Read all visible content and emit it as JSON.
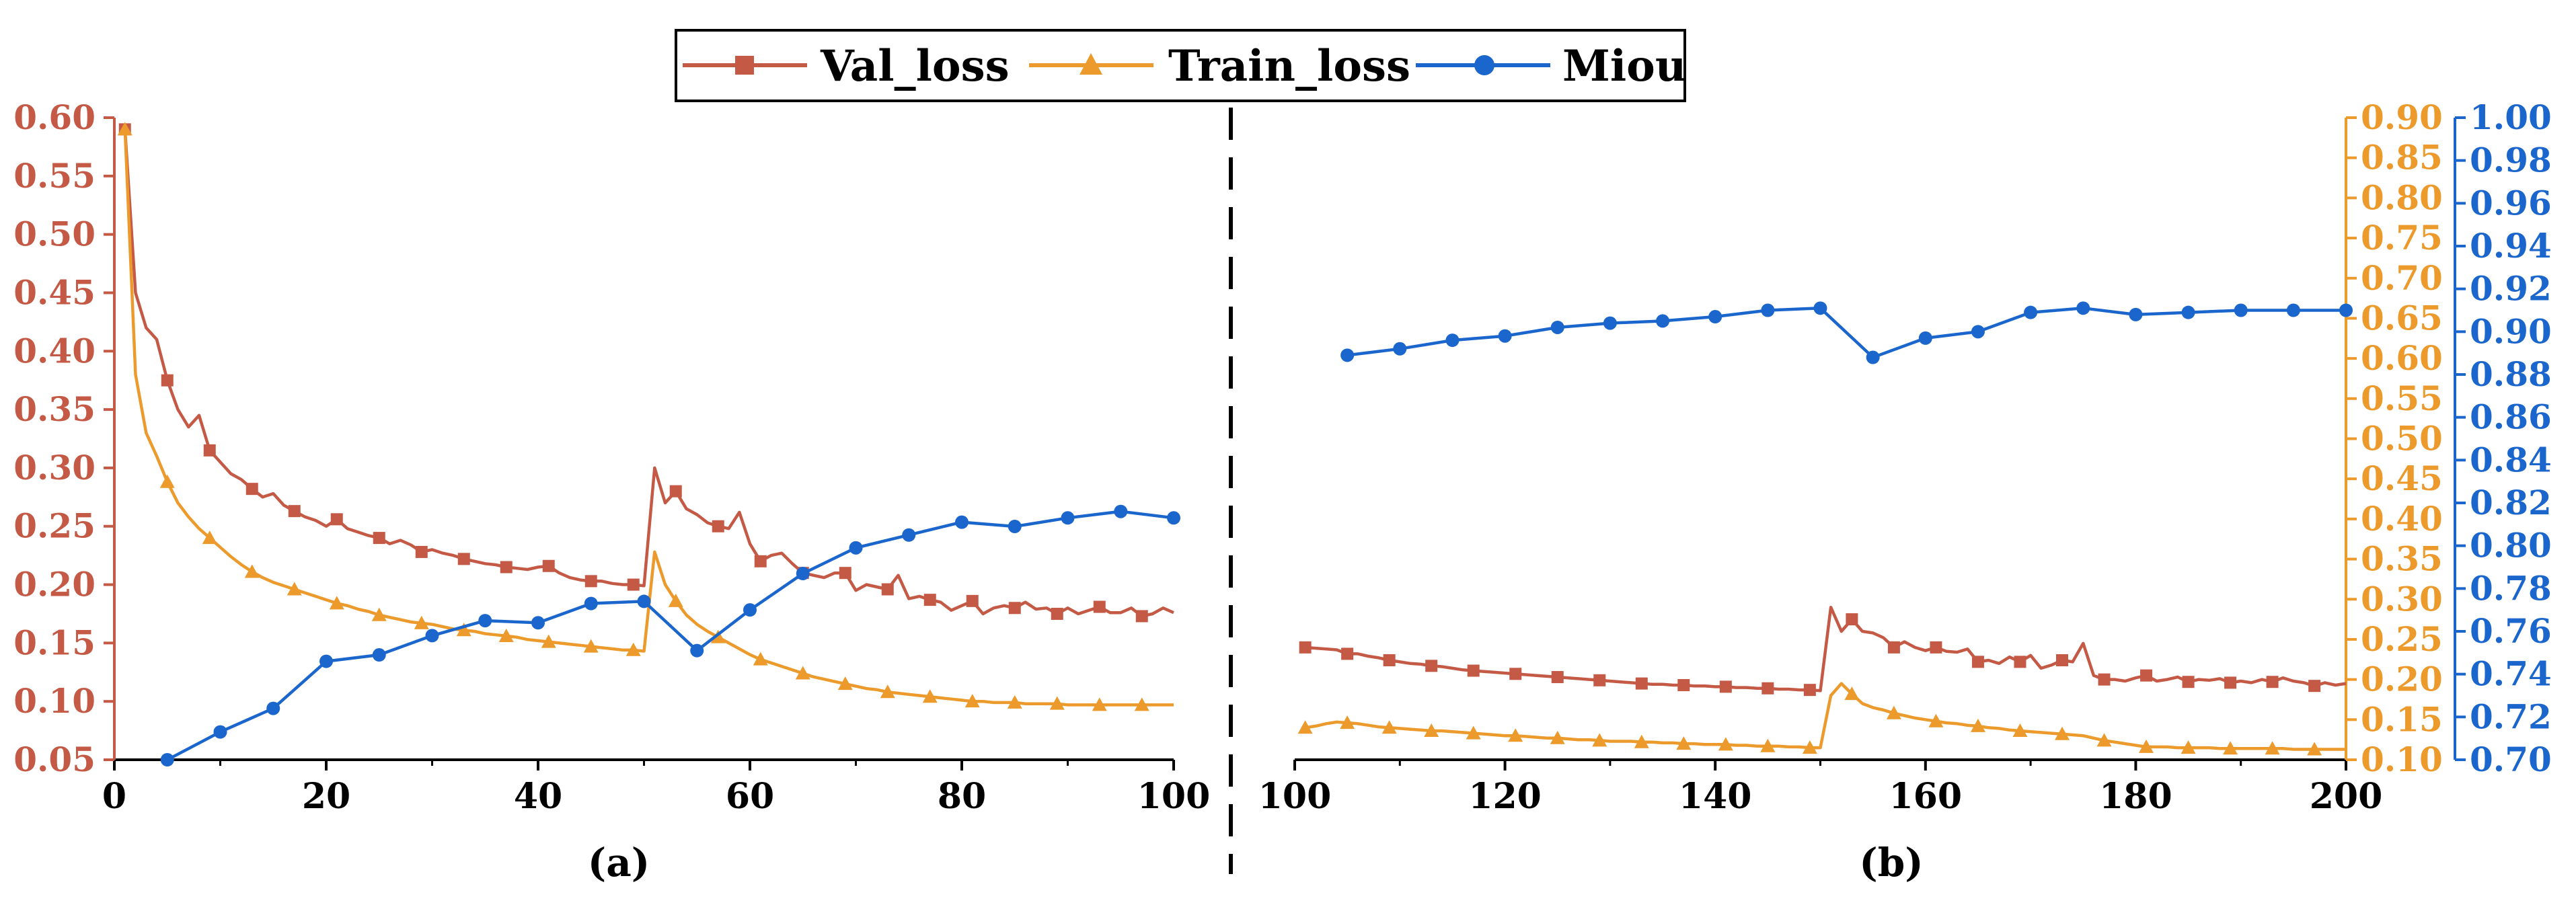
{
  "legend": {
    "val_loss": "Val_loss",
    "train_loss": "Train_loss",
    "miou": "Miou"
  },
  "colors": {
    "val_loss": "#c45a45",
    "train_loss": "#eb9a2b",
    "miou": "#1b66cc",
    "axis": "#000000"
  },
  "chart_data": [
    {
      "panel_label": "(a)",
      "type": "line",
      "xlim": [
        0,
        100
      ],
      "x_ticks": [
        0,
        20,
        40,
        60,
        80,
        100
      ],
      "left_axis": {
        "series": "Val_loss",
        "ylim": [
          0.05,
          0.6
        ],
        "ticks": [
          "0.05",
          "0.10",
          "0.15",
          "0.20",
          "0.25",
          "0.30",
          "0.35",
          "0.40",
          "0.45",
          "0.50",
          "0.55",
          "0.60"
        ]
      },
      "series": [
        {
          "name": "Val_loss",
          "axis": "left",
          "x": [
            1,
            2,
            3,
            4,
            5,
            6,
            7,
            8,
            9,
            10,
            11,
            12,
            13,
            14,
            15,
            16,
            17,
            18,
            19,
            20,
            21,
            22,
            23,
            24,
            25,
            26,
            27,
            28,
            29,
            30,
            31,
            32,
            33,
            34,
            35,
            36,
            37,
            38,
            39,
            40,
            41,
            42,
            43,
            44,
            45,
            46,
            47,
            48,
            49,
            50,
            51,
            52,
            53,
            54,
            55,
            56,
            57,
            58,
            59,
            60,
            61,
            62,
            63,
            64,
            65,
            66,
            67,
            68,
            69,
            70,
            71,
            72,
            73,
            74,
            75,
            76,
            77,
            78,
            79,
            80,
            81,
            82,
            83,
            84,
            85,
            86,
            87,
            88,
            89,
            90,
            91,
            92,
            93,
            94,
            95,
            96,
            97,
            98,
            99,
            100
          ],
          "y": [
            0.59,
            0.45,
            0.42,
            0.41,
            0.375,
            0.35,
            0.335,
            0.345,
            0.315,
            0.305,
            0.295,
            0.29,
            0.282,
            0.275,
            0.278,
            0.268,
            0.263,
            0.258,
            0.255,
            0.25,
            0.256,
            0.248,
            0.245,
            0.242,
            0.24,
            0.235,
            0.238,
            0.234,
            0.228,
            0.23,
            0.227,
            0.225,
            0.222,
            0.22,
            0.218,
            0.217,
            0.215,
            0.214,
            0.213,
            0.215,
            0.216,
            0.21,
            0.206,
            0.204,
            0.203,
            0.203,
            0.201,
            0.2,
            0.2,
            0.199,
            0.3,
            0.27,
            0.28,
            0.265,
            0.26,
            0.253,
            0.25,
            0.248,
            0.262,
            0.235,
            0.22,
            0.225,
            0.227,
            0.218,
            0.21,
            0.208,
            0.206,
            0.21,
            0.21,
            0.195,
            0.2,
            0.198,
            0.196,
            0.208,
            0.188,
            0.19,
            0.187,
            0.185,
            0.178,
            0.182,
            0.186,
            0.175,
            0.18,
            0.182,
            0.18,
            0.185,
            0.179,
            0.18,
            0.175,
            0.18,
            0.175,
            0.178,
            0.181,
            0.176,
            0.176,
            0.18,
            0.173,
            0.175,
            0.18,
            0.176
          ],
          "marker_every": 4,
          "marker_offset": 0
        },
        {
          "name": "Train_loss",
          "axis": "left",
          "x": [
            1,
            2,
            3,
            4,
            5,
            6,
            7,
            8,
            9,
            10,
            11,
            12,
            13,
            14,
            15,
            16,
            17,
            18,
            19,
            20,
            21,
            22,
            23,
            24,
            25,
            26,
            27,
            28,
            29,
            30,
            31,
            32,
            33,
            34,
            35,
            36,
            37,
            38,
            39,
            40,
            41,
            42,
            43,
            44,
            45,
            46,
            47,
            48,
            49,
            50,
            51,
            52,
            53,
            54,
            55,
            56,
            57,
            58,
            59,
            60,
            61,
            62,
            63,
            64,
            65,
            66,
            67,
            68,
            69,
            70,
            71,
            72,
            73,
            74,
            75,
            76,
            77,
            78,
            79,
            80,
            81,
            82,
            83,
            84,
            85,
            86,
            87,
            88,
            89,
            90,
            91,
            92,
            93,
            94,
            95,
            96,
            97,
            98,
            99,
            100
          ],
          "y": [
            0.59,
            0.38,
            0.33,
            0.31,
            0.288,
            0.27,
            0.258,
            0.248,
            0.24,
            0.232,
            0.224,
            0.217,
            0.211,
            0.206,
            0.202,
            0.199,
            0.196,
            0.193,
            0.19,
            0.187,
            0.184,
            0.182,
            0.179,
            0.177,
            0.174,
            0.172,
            0.17,
            0.168,
            0.167,
            0.166,
            0.164,
            0.162,
            0.161,
            0.16,
            0.158,
            0.157,
            0.156,
            0.155,
            0.153,
            0.152,
            0.151,
            0.15,
            0.149,
            0.148,
            0.147,
            0.146,
            0.145,
            0.144,
            0.144,
            0.143,
            0.228,
            0.2,
            0.186,
            0.174,
            0.166,
            0.16,
            0.155,
            0.15,
            0.145,
            0.14,
            0.136,
            0.133,
            0.13,
            0.127,
            0.124,
            0.121,
            0.119,
            0.117,
            0.115,
            0.113,
            0.111,
            0.11,
            0.108,
            0.107,
            0.106,
            0.105,
            0.104,
            0.103,
            0.102,
            0.101,
            0.1,
            0.1,
            0.099,
            0.099,
            0.099,
            0.098,
            0.098,
            0.098,
            0.098,
            0.097,
            0.097,
            0.097,
            0.097,
            0.097,
            0.097,
            0.097,
            0.097,
            0.097,
            0.097,
            0.097
          ],
          "marker_every": 4,
          "marker_offset": 0
        },
        {
          "name": "Miou",
          "axis": "right",
          "x": [
            5,
            10,
            15,
            20,
            25,
            30,
            35,
            40,
            45,
            50,
            55,
            60,
            65,
            70,
            75,
            80,
            85,
            90,
            95,
            100
          ],
          "y": [
            0.7,
            0.713,
            0.724,
            0.746,
            0.749,
            0.758,
            0.765,
            0.764,
            0.773,
            0.774,
            0.751,
            0.77,
            0.787,
            0.799,
            0.805,
            0.811,
            0.809,
            0.813,
            0.816,
            0.813
          ],
          "marker_every": 1,
          "marker_offset": 0
        }
      ]
    },
    {
      "panel_label": "(b)",
      "type": "line",
      "xlim": [
        100,
        200
      ],
      "x_ticks": [
        100,
        120,
        140,
        160,
        180,
        200
      ],
      "train_axis": {
        "series": "Train_loss",
        "ylim": [
          0.1,
          0.9
        ],
        "ticks": [
          "0.10",
          "0.15",
          "0.20",
          "0.25",
          "0.30",
          "0.35",
          "0.40",
          "0.45",
          "0.50",
          "0.55",
          "0.60",
          "0.65",
          "0.70",
          "0.75",
          "0.80",
          "0.85",
          "0.90"
        ]
      },
      "miou_axis": {
        "series": "Miou",
        "ylim": [
          0.7,
          1.0
        ],
        "ticks": [
          "0.70",
          "0.72",
          "0.74",
          "0.76",
          "0.78",
          "0.80",
          "0.82",
          "0.84",
          "0.86",
          "0.88",
          "0.90",
          "0.92",
          "0.94",
          "0.96",
          "0.98",
          "1.00"
        ]
      },
      "series": [
        {
          "name": "Val_loss",
          "axis": "train",
          "x": [
            101,
            102,
            103,
            104,
            105,
            106,
            107,
            108,
            109,
            110,
            111,
            112,
            113,
            114,
            115,
            116,
            117,
            118,
            119,
            120,
            121,
            122,
            123,
            124,
            125,
            126,
            127,
            128,
            129,
            130,
            131,
            132,
            133,
            134,
            135,
            136,
            137,
            138,
            139,
            140,
            141,
            142,
            143,
            144,
            145,
            146,
            147,
            148,
            149,
            150,
            151,
            152,
            153,
            154,
            155,
            156,
            157,
            158,
            159,
            160,
            161,
            162,
            163,
            164,
            165,
            166,
            167,
            168,
            169,
            170,
            171,
            172,
            173,
            174,
            175,
            176,
            177,
            178,
            179,
            180,
            181,
            182,
            183,
            184,
            185,
            186,
            187,
            188,
            189,
            190,
            191,
            192,
            193,
            194,
            195,
            196,
            197,
            198,
            199,
            200
          ],
          "y": [
            0.24,
            0.239,
            0.238,
            0.237,
            0.232,
            0.232,
            0.229,
            0.227,
            0.224,
            0.222,
            0.22,
            0.219,
            0.217,
            0.216,
            0.214,
            0.212,
            0.211,
            0.21,
            0.209,
            0.208,
            0.207,
            0.206,
            0.205,
            0.204,
            0.203,
            0.202,
            0.201,
            0.2,
            0.199,
            0.198,
            0.197,
            0.196,
            0.195,
            0.194,
            0.194,
            0.193,
            0.193,
            0.192,
            0.192,
            0.191,
            0.191,
            0.19,
            0.19,
            0.189,
            0.189,
            0.188,
            0.188,
            0.187,
            0.187,
            0.186,
            0.29,
            0.26,
            0.275,
            0.26,
            0.258,
            0.252,
            0.24,
            0.247,
            0.24,
            0.236,
            0.24,
            0.235,
            0.234,
            0.238,
            0.222,
            0.224,
            0.22,
            0.228,
            0.222,
            0.23,
            0.214,
            0.218,
            0.224,
            0.222,
            0.245,
            0.205,
            0.2,
            0.2,
            0.198,
            0.202,
            0.205,
            0.198,
            0.2,
            0.203,
            0.197,
            0.2,
            0.199,
            0.201,
            0.196,
            0.198,
            0.196,
            0.2,
            0.197,
            0.202,
            0.198,
            0.196,
            0.192,
            0.196,
            0.193,
            0.195
          ],
          "marker_every": 4,
          "marker_offset": 0
        },
        {
          "name": "Train_loss",
          "axis": "train",
          "x": [
            101,
            102,
            103,
            104,
            105,
            106,
            107,
            108,
            109,
            110,
            111,
            112,
            113,
            114,
            115,
            116,
            117,
            118,
            119,
            120,
            121,
            122,
            123,
            124,
            125,
            126,
            127,
            128,
            129,
            130,
            131,
            132,
            133,
            134,
            135,
            136,
            137,
            138,
            139,
            140,
            141,
            142,
            143,
            144,
            145,
            146,
            147,
            148,
            149,
            150,
            151,
            152,
            153,
            154,
            155,
            156,
            157,
            158,
            159,
            160,
            161,
            162,
            163,
            164,
            165,
            166,
            167,
            168,
            169,
            170,
            171,
            172,
            173,
            174,
            175,
            176,
            177,
            178,
            179,
            180,
            181,
            182,
            183,
            184,
            185,
            186,
            187,
            188,
            189,
            190,
            191,
            192,
            193,
            194,
            195,
            196,
            197,
            198,
            199,
            200
          ],
          "y": [
            0.14,
            0.142,
            0.145,
            0.147,
            0.146,
            0.145,
            0.143,
            0.141,
            0.14,
            0.139,
            0.138,
            0.137,
            0.136,
            0.136,
            0.135,
            0.134,
            0.133,
            0.132,
            0.131,
            0.13,
            0.13,
            0.129,
            0.128,
            0.127,
            0.127,
            0.126,
            0.125,
            0.125,
            0.124,
            0.123,
            0.123,
            0.123,
            0.122,
            0.122,
            0.121,
            0.121,
            0.12,
            0.12,
            0.119,
            0.119,
            0.119,
            0.118,
            0.118,
            0.117,
            0.117,
            0.117,
            0.116,
            0.116,
            0.115,
            0.115,
            0.18,
            0.195,
            0.182,
            0.17,
            0.165,
            0.162,
            0.158,
            0.155,
            0.152,
            0.15,
            0.148,
            0.146,
            0.145,
            0.143,
            0.142,
            0.14,
            0.139,
            0.137,
            0.136,
            0.135,
            0.134,
            0.133,
            0.132,
            0.131,
            0.13,
            0.127,
            0.124,
            0.122,
            0.12,
            0.118,
            0.116,
            0.116,
            0.116,
            0.115,
            0.115,
            0.115,
            0.115,
            0.114,
            0.114,
            0.114,
            0.114,
            0.114,
            0.114,
            0.114,
            0.113,
            0.113,
            0.113,
            0.113,
            0.113,
            0.113
          ],
          "marker_every": 4,
          "marker_offset": 0
        },
        {
          "name": "Miou",
          "axis": "miou",
          "x": [
            105,
            110,
            115,
            120,
            125,
            130,
            135,
            140,
            145,
            150,
            155,
            160,
            165,
            170,
            175,
            180,
            185,
            190,
            195,
            200
          ],
          "y": [
            0.889,
            0.892,
            0.896,
            0.898,
            0.902,
            0.904,
            0.905,
            0.907,
            0.91,
            0.911,
            0.888,
            0.897,
            0.9,
            0.909,
            0.911,
            0.908,
            0.909,
            0.91,
            0.91,
            0.91
          ],
          "marker_every": 1,
          "marker_offset": 0
        }
      ]
    }
  ]
}
